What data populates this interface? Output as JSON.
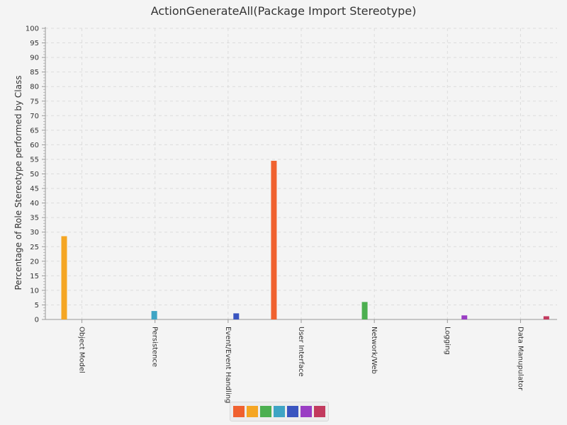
{
  "chart_data": {
    "type": "bar",
    "title": "ActionGenerateAll(Package Import Stereotype)",
    "xlabel": "",
    "ylabel": "Percentage of Role Stereotype performed by Class",
    "ylim": [
      0,
      100
    ],
    "ytick_step": 5,
    "grid": true,
    "categories": [
      "Object Model",
      "Persistence",
      "Event/Event Handling",
      "User Interface",
      "Network/Web",
      "Logging",
      "Data Manupulator"
    ],
    "series": [
      {
        "color": "#f0612f",
        "values": [
          0,
          0,
          0,
          54.5,
          0,
          0,
          0
        ]
      },
      {
        "color": "#f5a623",
        "values": [
          28.6,
          0,
          0,
          0,
          0,
          0,
          0
        ]
      },
      {
        "color": "#4caf50",
        "values": [
          0,
          0,
          0,
          0,
          6,
          0,
          0
        ]
      },
      {
        "color": "#3ea4c4",
        "values": [
          0,
          2.9,
          0,
          0,
          0,
          0,
          0
        ]
      },
      {
        "color": "#3a55c0",
        "values": [
          0,
          0,
          2.1,
          0,
          0,
          0,
          0
        ]
      },
      {
        "color": "#9a3ec4",
        "values": [
          0,
          0,
          0,
          0,
          0,
          1.4,
          0
        ]
      },
      {
        "color": "#c23a5e",
        "values": [
          0,
          0,
          0,
          0,
          0,
          0,
          1.1
        ]
      }
    ],
    "legend_position": "bottom"
  }
}
